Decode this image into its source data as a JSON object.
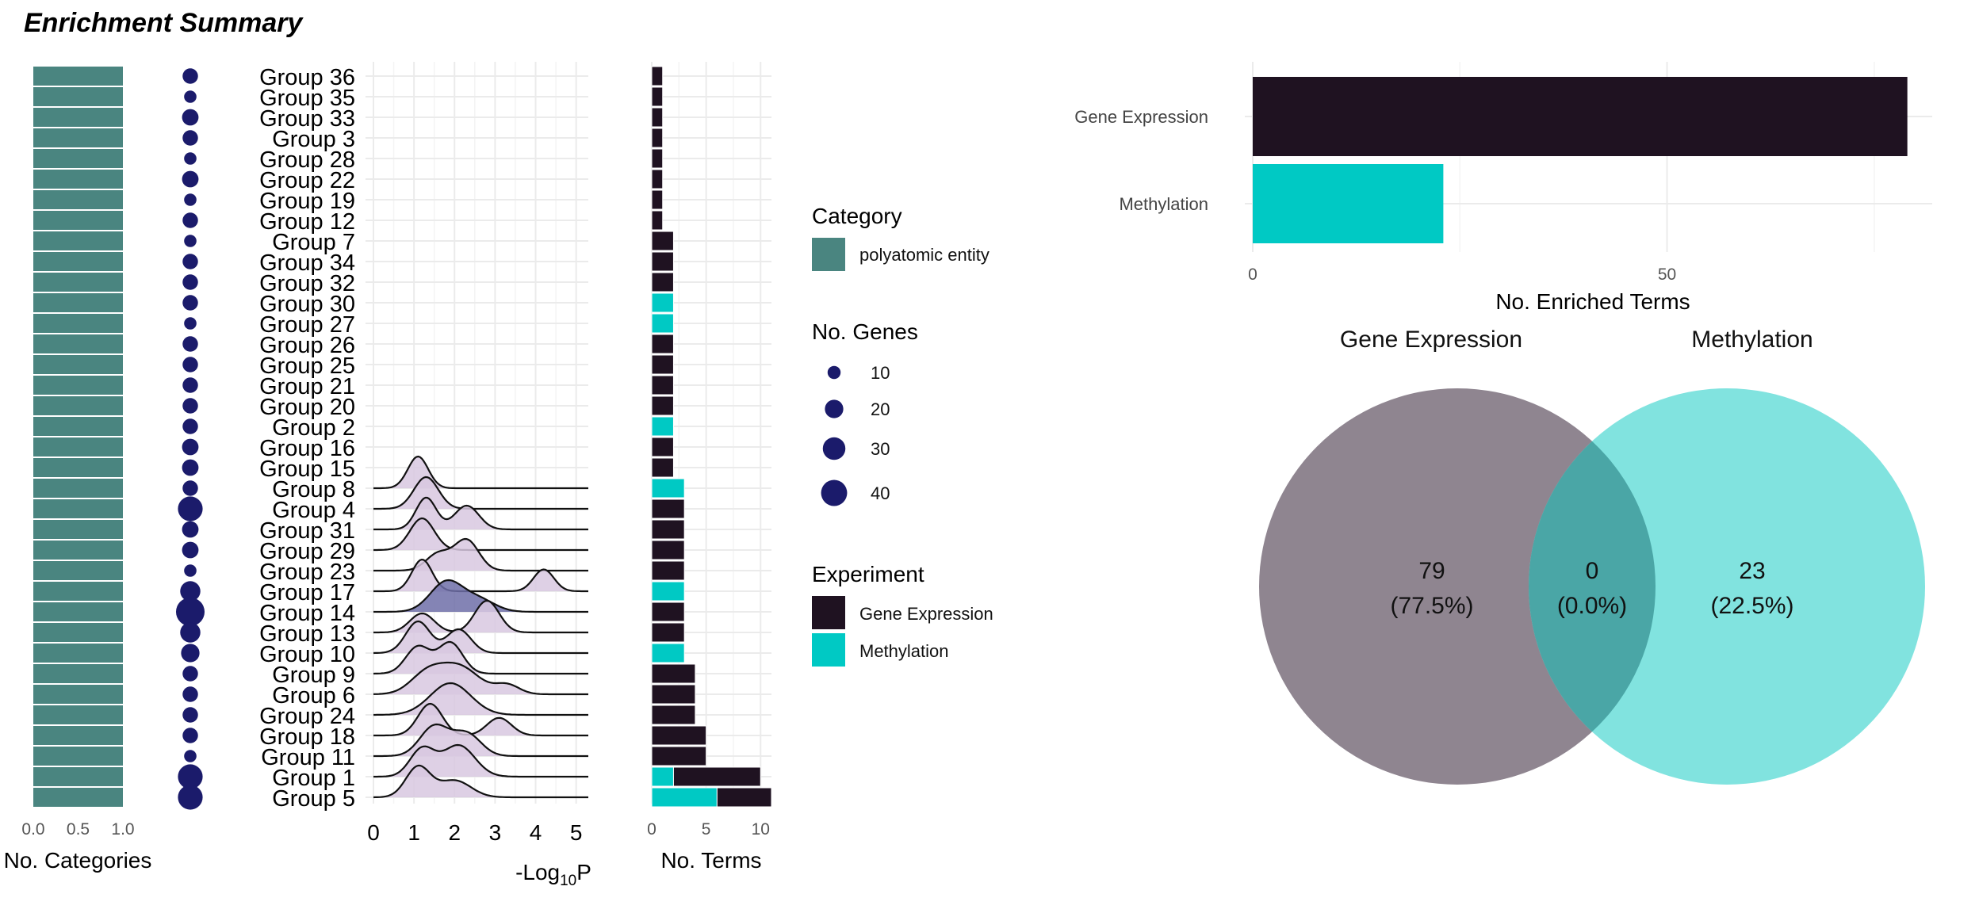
{
  "title": "Enrichment Summary",
  "colors": {
    "category": "#4a8580",
    "gene_expression": "#1f1221",
    "methylation": "#00c9c4",
    "dot": "#1b1b6b",
    "ridge_fill": "#d8c8e0",
    "ridge_fill_dark": "#6e6ea8",
    "grid": "#ebebeb",
    "venn_gene": "#8f8590",
    "venn_meth": "#81e3df",
    "venn_overlap": "#4aa6a6"
  },
  "chart_data": [
    {
      "type": "bar",
      "panel": "categories",
      "categories": [
        "Group 36",
        "Group 35",
        "Group 33",
        "Group 3",
        "Group 28",
        "Group 22",
        "Group 19",
        "Group 12",
        "Group 7",
        "Group 34",
        "Group 32",
        "Group 30",
        "Group 27",
        "Group 26",
        "Group 25",
        "Group 21",
        "Group 20",
        "Group 2",
        "Group 16",
        "Group 15",
        "Group 8",
        "Group 4",
        "Group 31",
        "Group 29",
        "Group 23",
        "Group 17",
        "Group 14",
        "Group 13",
        "Group 10",
        "Group 9",
        "Group 6",
        "Group 24",
        "Group 18",
        "Group 11",
        "Group 1",
        "Group 5"
      ],
      "values": [
        1,
        1,
        1,
        1,
        1,
        1,
        1,
        1,
        1,
        1,
        1,
        1,
        1,
        1,
        1,
        1,
        1,
        1,
        1,
        1,
        1,
        1,
        1,
        1,
        1,
        1,
        1,
        1,
        1,
        1,
        1,
        1,
        1,
        1,
        1,
        1
      ],
      "xlabel": "No. Categories",
      "xticks": [
        "0.0",
        "0.5",
        "1.0"
      ],
      "xlim": [
        0,
        1
      ],
      "series_name": "polyatomic entity"
    },
    {
      "type": "scatter",
      "panel": "genes",
      "values": [
        14,
        9,
        16,
        14,
        9,
        16,
        9,
        14,
        9,
        14,
        14,
        14,
        9,
        14,
        14,
        14,
        14,
        14,
        16,
        16,
        14,
        36,
        16,
        16,
        9,
        24,
        48,
        24,
        20,
        14,
        14,
        14,
        14,
        9,
        36,
        36
      ]
    },
    {
      "type": "area",
      "panel": "ridges",
      "xlabel_base": "-Log",
      "xlabel_sub": "10",
      "xlabel_tail": "P",
      "xticks": [
        "0",
        "1",
        "2",
        "3",
        "4",
        "5"
      ],
      "xlim": [
        0,
        5.3
      ],
      "ridges": [
        {
          "group": "Group 8",
          "peaks": [
            [
              1.1,
              0.25,
              0.8
            ]
          ]
        },
        {
          "group": "Group 4",
          "peaks": [
            [
              1.3,
              0.3,
              1.0
            ]
          ]
        },
        {
          "group": "Group 31",
          "peaks": [
            [
              1.3,
              0.25,
              0.8
            ],
            [
              2.3,
              0.3,
              0.6
            ]
          ]
        },
        {
          "group": "Group 29",
          "peaks": [
            [
              1.2,
              0.3,
              1.0
            ]
          ]
        },
        {
          "group": "Group 23",
          "peaks": [
            [
              1.6,
              0.3,
              0.5
            ],
            [
              2.3,
              0.3,
              0.9
            ]
          ]
        },
        {
          "group": "Group 17",
          "peaks": [
            [
              1.2,
              0.25,
              0.8
            ],
            [
              4.2,
              0.25,
              0.55
            ]
          ]
        },
        {
          "group": "Group 14",
          "peaks": [
            [
              1.8,
              0.4,
              1.0
            ],
            [
              2.6,
              0.4,
              0.4
            ]
          ]
        },
        {
          "group": "Group 13",
          "peaks": [
            [
              1.2,
              0.3,
              0.6
            ],
            [
              2.8,
              0.3,
              1.0
            ]
          ]
        },
        {
          "group": "Group 10",
          "peaks": [
            [
              1.1,
              0.3,
              0.8
            ],
            [
              2.1,
              0.3,
              0.6
            ]
          ]
        },
        {
          "group": "Group 9",
          "peaks": [
            [
              1.1,
              0.3,
              0.7
            ],
            [
              1.9,
              0.3,
              0.8
            ]
          ]
        },
        {
          "group": "Group 6",
          "peaks": [
            [
              1.3,
              0.4,
              0.6
            ],
            [
              2.1,
              0.5,
              0.9
            ],
            [
              3.3,
              0.3,
              0.3
            ]
          ]
        },
        {
          "group": "Group 24",
          "peaks": [
            [
              1.9,
              0.5,
              1.0
            ]
          ]
        },
        {
          "group": "Group 18",
          "peaks": [
            [
              1.4,
              0.3,
              0.9
            ],
            [
              3.1,
              0.3,
              0.5
            ]
          ]
        },
        {
          "group": "Group 11",
          "peaks": [
            [
              1.5,
              0.35,
              0.8
            ],
            [
              2.3,
              0.35,
              0.6
            ]
          ]
        },
        {
          "group": "Group 1",
          "peaks": [
            [
              1.2,
              0.3,
              0.7
            ],
            [
              2.1,
              0.4,
              0.8
            ]
          ]
        },
        {
          "group": "Group 5",
          "peaks": [
            [
              1.1,
              0.3,
              0.9
            ],
            [
              2.0,
              0.4,
              0.5
            ]
          ]
        }
      ]
    },
    {
      "type": "bar",
      "panel": "terms",
      "xlabel": "No. Terms",
      "xticks": [
        "0",
        "5",
        "10"
      ],
      "xlim": [
        0,
        11
      ],
      "series": [
        {
          "name": "Gene Expression",
          "values": [
            1,
            1,
            1,
            1,
            1,
            1,
            1,
            1,
            2,
            2,
            2,
            0,
            0,
            2,
            2,
            2,
            2,
            0,
            2,
            2,
            0,
            3,
            3,
            3,
            3,
            0,
            3,
            3,
            0,
            4,
            4,
            4,
            5,
            5,
            8,
            5
          ]
        },
        {
          "name": "Methylation",
          "values": [
            0,
            0,
            0,
            0,
            0,
            0,
            0,
            0,
            0,
            0,
            0,
            2,
            2,
            0,
            0,
            0,
            0,
            2,
            0,
            0,
            3,
            0,
            0,
            0,
            0,
            3,
            0,
            0,
            3,
            0,
            0,
            0,
            0,
            0,
            2,
            6
          ]
        }
      ]
    },
    {
      "type": "bar",
      "panel": "enriched",
      "orientation": "horizontal",
      "categories": [
        "Gene Expression",
        "Methylation"
      ],
      "values": [
        79,
        23
      ],
      "xlabel": "No. Enriched Terms",
      "xticks": [
        "0",
        "50"
      ],
      "xlim": [
        0,
        82
      ]
    },
    {
      "type": "venn",
      "panel": "venn",
      "sets": [
        {
          "name": "Gene Expression",
          "count": "79",
          "pct": "(77.5%)"
        },
        {
          "name": "Methylation",
          "count": "23",
          "pct": "(22.5%)"
        }
      ],
      "overlap": {
        "count": "0",
        "pct": "(0.0%)"
      }
    }
  ],
  "legend": {
    "category_title": "Category",
    "category_item": "polyatomic entity",
    "genes_title": "No. Genes",
    "genes_items": [
      {
        "label": "10",
        "value": 10
      },
      {
        "label": "20",
        "value": 20
      },
      {
        "label": "30",
        "value": 30
      },
      {
        "label": "40",
        "value": 40
      }
    ],
    "experiment_title": "Experiment",
    "experiment_items": [
      "Gene Expression",
      "Methylation"
    ]
  }
}
